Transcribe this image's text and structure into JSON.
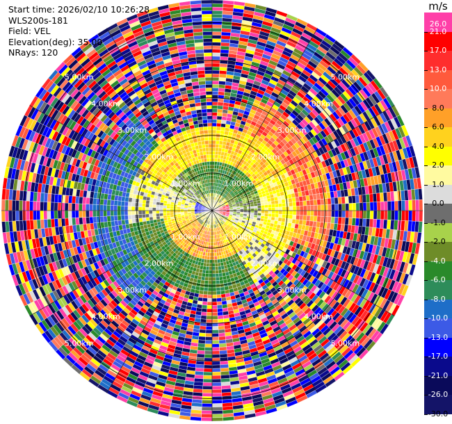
{
  "header": {
    "start_time": "Start time: 2026/02/10 10:26:28",
    "station": "WLS200s-181",
    "field": "Field: VEL",
    "elevation": "Elevation(deg): 35.00",
    "nrays": "NRays: 120"
  },
  "chart_data": {
    "type": "ppi",
    "field": "VEL",
    "units": "m/s",
    "elevation_deg": 35.0,
    "n_rays": 120,
    "range_rings_km": [
      1.0,
      2.0,
      3.0,
      4.0,
      5.0
    ],
    "range_labels": [
      "1.00km",
      "2.00km",
      "3.00km",
      "4.00km",
      "5.00km"
    ],
    "spokes_deg": [
      0,
      30,
      60,
      90,
      120,
      150,
      180,
      210,
      240,
      270,
      300,
      330
    ],
    "max_range_km": 5.6,
    "colorbar": {
      "unit": "m/s",
      "ticks": [
        "26.0",
        "21.0",
        "17.0",
        "13.0",
        "10.0",
        "8.0",
        "6.0",
        "4.0",
        "2.0",
        "1.0",
        "0.0",
        "-1.0",
        "-2.0",
        "-4.0",
        "-6.0",
        "-8.0",
        "-10.0",
        "-13.0",
        "-17.0",
        "-21.0",
        "-26.0",
        "-30.0"
      ],
      "colors": [
        "#ff3fa8",
        "#ff0000",
        "#ff2d2d",
        "#ff5a3c",
        "#ff7a5a",
        "#ffa028",
        "#ffd21e",
        "#ffff00",
        "#fffaa0",
        "#dcdcdc",
        "#6e6e6e",
        "#a8d24b",
        "#6e8c28",
        "#2a8a2a",
        "#2d8c5a",
        "#1e6ec8",
        "#3c5ae6",
        "#0000ff",
        "#0a0a8c",
        "#0a0a5a",
        "#141468"
      ]
    }
  }
}
